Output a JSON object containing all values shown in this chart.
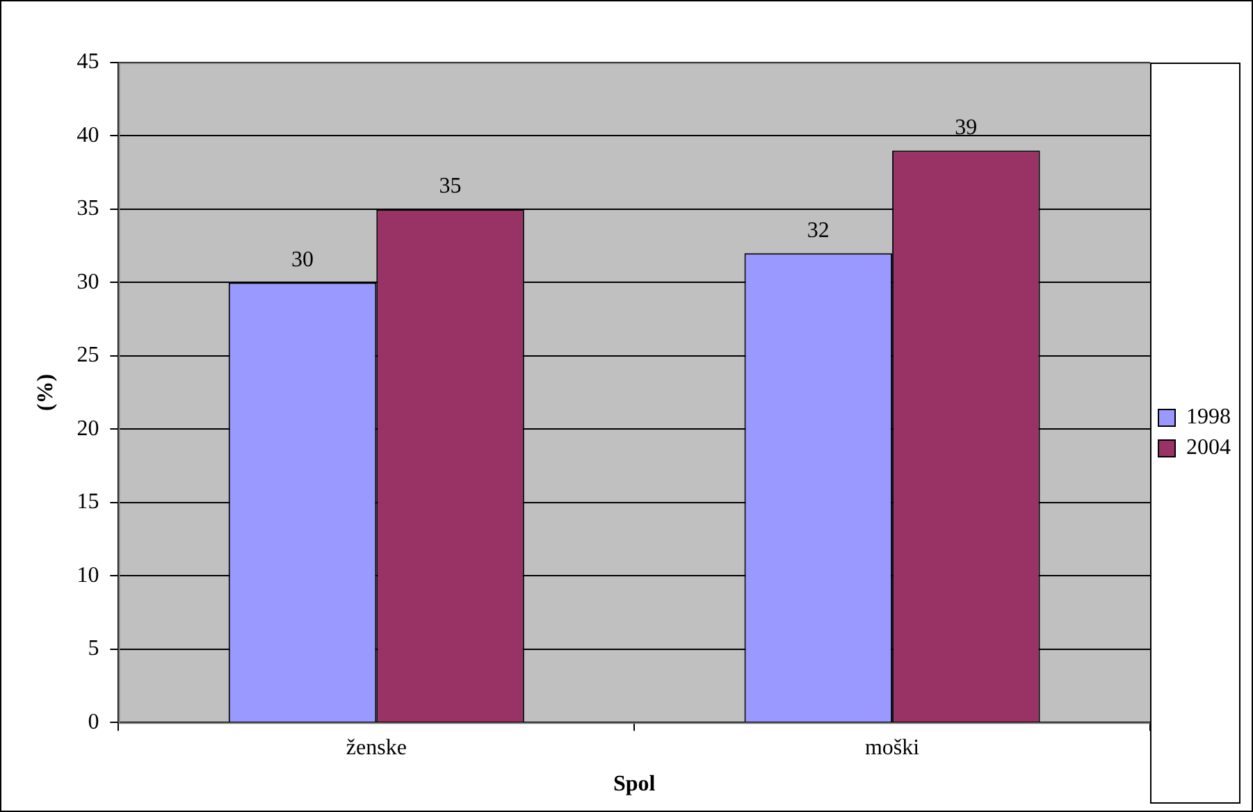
{
  "chart_data": {
    "type": "bar",
    "xlabel": "Spol",
    "ylabel": "(%)",
    "categories": [
      "ženske",
      "moški"
    ],
    "series": [
      {
        "name": "1998",
        "color": "#9999ff",
        "values": [
          30,
          32
        ]
      },
      {
        "name": "2004",
        "color": "#993366",
        "values": [
          35,
          39
        ]
      }
    ],
    "ylim": [
      0,
      45
    ],
    "yticks": [
      0,
      5,
      10,
      15,
      20,
      25,
      30,
      35,
      40,
      45
    ],
    "grid": "y",
    "legend": "right",
    "data_labels": true
  }
}
